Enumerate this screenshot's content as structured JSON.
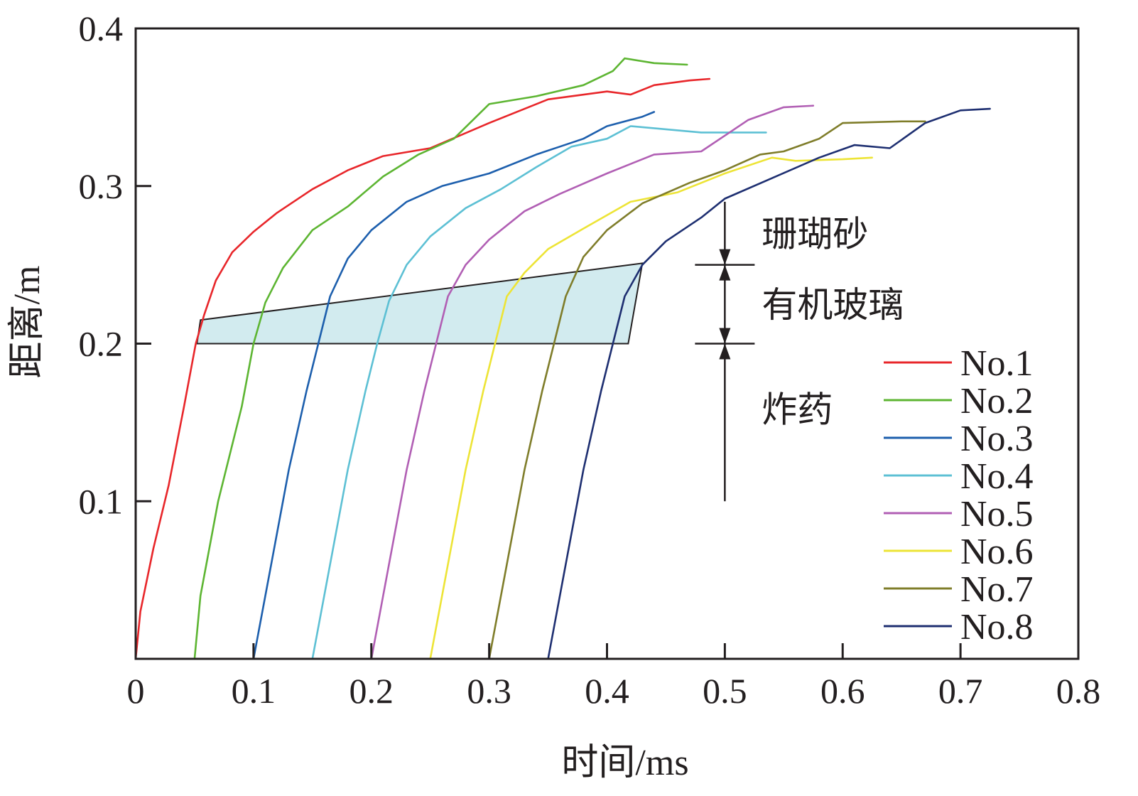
{
  "chart_data": {
    "type": "line",
    "xlabel": "时间/ms",
    "ylabel": "距离/m",
    "xlim": [
      0,
      0.8
    ],
    "ylim": [
      0,
      0.4
    ],
    "xticks": [
      "0",
      "0.1",
      "0.2",
      "0.3",
      "0.4",
      "0.5",
      "0.6",
      "0.7",
      "0.8"
    ],
    "yticks": [
      "0.1",
      "0.2",
      "0.3",
      "0.4"
    ],
    "grid": false,
    "legend_position": "bottom-right",
    "series": [
      {
        "name": "No.1",
        "color": "#e8262a",
        "x": [
          0.0,
          0.004,
          0.015,
          0.028,
          0.041,
          0.051,
          0.058,
          0.068,
          0.082,
          0.1,
          0.12,
          0.15,
          0.18,
          0.21,
          0.25,
          0.3,
          0.35,
          0.4,
          0.42,
          0.44,
          0.47,
          0.487
        ],
        "y": [
          0.0,
          0.03,
          0.07,
          0.11,
          0.16,
          0.2,
          0.218,
          0.24,
          0.258,
          0.271,
          0.283,
          0.298,
          0.31,
          0.319,
          0.324,
          0.34,
          0.355,
          0.36,
          0.358,
          0.364,
          0.367,
          0.368
        ]
      },
      {
        "name": "No.2",
        "color": "#5db532",
        "x": [
          0.05,
          0.055,
          0.07,
          0.09,
          0.1,
          0.11,
          0.125,
          0.15,
          0.18,
          0.21,
          0.24,
          0.27,
          0.3,
          0.34,
          0.38,
          0.405,
          0.415,
          0.44,
          0.468
        ],
        "y": [
          0.0,
          0.04,
          0.1,
          0.16,
          0.2,
          0.226,
          0.248,
          0.272,
          0.287,
          0.306,
          0.32,
          0.33,
          0.352,
          0.357,
          0.364,
          0.373,
          0.381,
          0.378,
          0.377
        ]
      },
      {
        "name": "No.3",
        "color": "#1d5fad",
        "x": [
          0.1,
          0.115,
          0.13,
          0.145,
          0.155,
          0.165,
          0.18,
          0.2,
          0.23,
          0.26,
          0.3,
          0.34,
          0.36,
          0.38,
          0.4,
          0.43,
          0.44
        ],
        "y": [
          0.0,
          0.06,
          0.12,
          0.17,
          0.2,
          0.23,
          0.254,
          0.272,
          0.29,
          0.3,
          0.308,
          0.32,
          0.325,
          0.33,
          0.338,
          0.344,
          0.347
        ]
      },
      {
        "name": "No.4",
        "color": "#5dc0d4",
        "x": [
          0.15,
          0.165,
          0.18,
          0.195,
          0.205,
          0.215,
          0.23,
          0.25,
          0.28,
          0.31,
          0.34,
          0.37,
          0.4,
          0.42,
          0.45,
          0.48,
          0.535
        ],
        "y": [
          0.0,
          0.06,
          0.12,
          0.17,
          0.2,
          0.227,
          0.25,
          0.268,
          0.286,
          0.298,
          0.312,
          0.325,
          0.33,
          0.338,
          0.336,
          0.334,
          0.334
        ]
      },
      {
        "name": "No.5",
        "color": "#b15fb4",
        "x": [
          0.2,
          0.215,
          0.23,
          0.245,
          0.255,
          0.265,
          0.28,
          0.3,
          0.33,
          0.36,
          0.4,
          0.44,
          0.48,
          0.5,
          0.52,
          0.55,
          0.575
        ],
        "y": [
          0.0,
          0.06,
          0.12,
          0.17,
          0.2,
          0.23,
          0.25,
          0.266,
          0.284,
          0.295,
          0.308,
          0.32,
          0.322,
          0.332,
          0.342,
          0.35,
          0.351
        ]
      },
      {
        "name": "No.6",
        "color": "#ede436",
        "x": [
          0.25,
          0.265,
          0.28,
          0.295,
          0.305,
          0.315,
          0.33,
          0.35,
          0.38,
          0.42,
          0.46,
          0.5,
          0.54,
          0.56,
          0.6,
          0.625
        ],
        "y": [
          0.0,
          0.06,
          0.12,
          0.17,
          0.2,
          0.23,
          0.245,
          0.26,
          0.273,
          0.29,
          0.296,
          0.308,
          0.318,
          0.316,
          0.317,
          0.318
        ]
      },
      {
        "name": "No.7",
        "color": "#7f7d2a",
        "x": [
          0.3,
          0.315,
          0.33,
          0.345,
          0.355,
          0.365,
          0.38,
          0.4,
          0.43,
          0.47,
          0.5,
          0.53,
          0.55,
          0.58,
          0.6,
          0.65,
          0.67
        ],
        "y": [
          0.0,
          0.06,
          0.12,
          0.17,
          0.2,
          0.23,
          0.255,
          0.272,
          0.289,
          0.302,
          0.31,
          0.32,
          0.322,
          0.33,
          0.34,
          0.341,
          0.341
        ]
      },
      {
        "name": "No.8",
        "color": "#1e2f71",
        "x": [
          0.35,
          0.365,
          0.38,
          0.395,
          0.405,
          0.415,
          0.43,
          0.45,
          0.48,
          0.5,
          0.54,
          0.58,
          0.61,
          0.64,
          0.67,
          0.7,
          0.725
        ],
        "y": [
          0.0,
          0.06,
          0.12,
          0.17,
          0.2,
          0.23,
          0.25,
          0.265,
          0.28,
          0.292,
          0.305,
          0.318,
          0.326,
          0.324,
          0.34,
          0.348,
          0.349
        ]
      }
    ],
    "annotations": {
      "region_labels": [
        "珊瑚砂",
        "有机玻璃",
        "炸药"
      ],
      "fill_color": "#d2ebef",
      "shaded_region": {
        "x": [
          0.055,
          0.43,
          0.418,
          0.052
        ],
        "y": [
          0.215,
          0.251,
          0.2,
          0.2
        ]
      },
      "dimension_line": {
        "x": 0.5,
        "y_top": 0.29,
        "y_bottom": 0.1,
        "boundaries": [
          0.25,
          0.2
        ]
      }
    }
  }
}
